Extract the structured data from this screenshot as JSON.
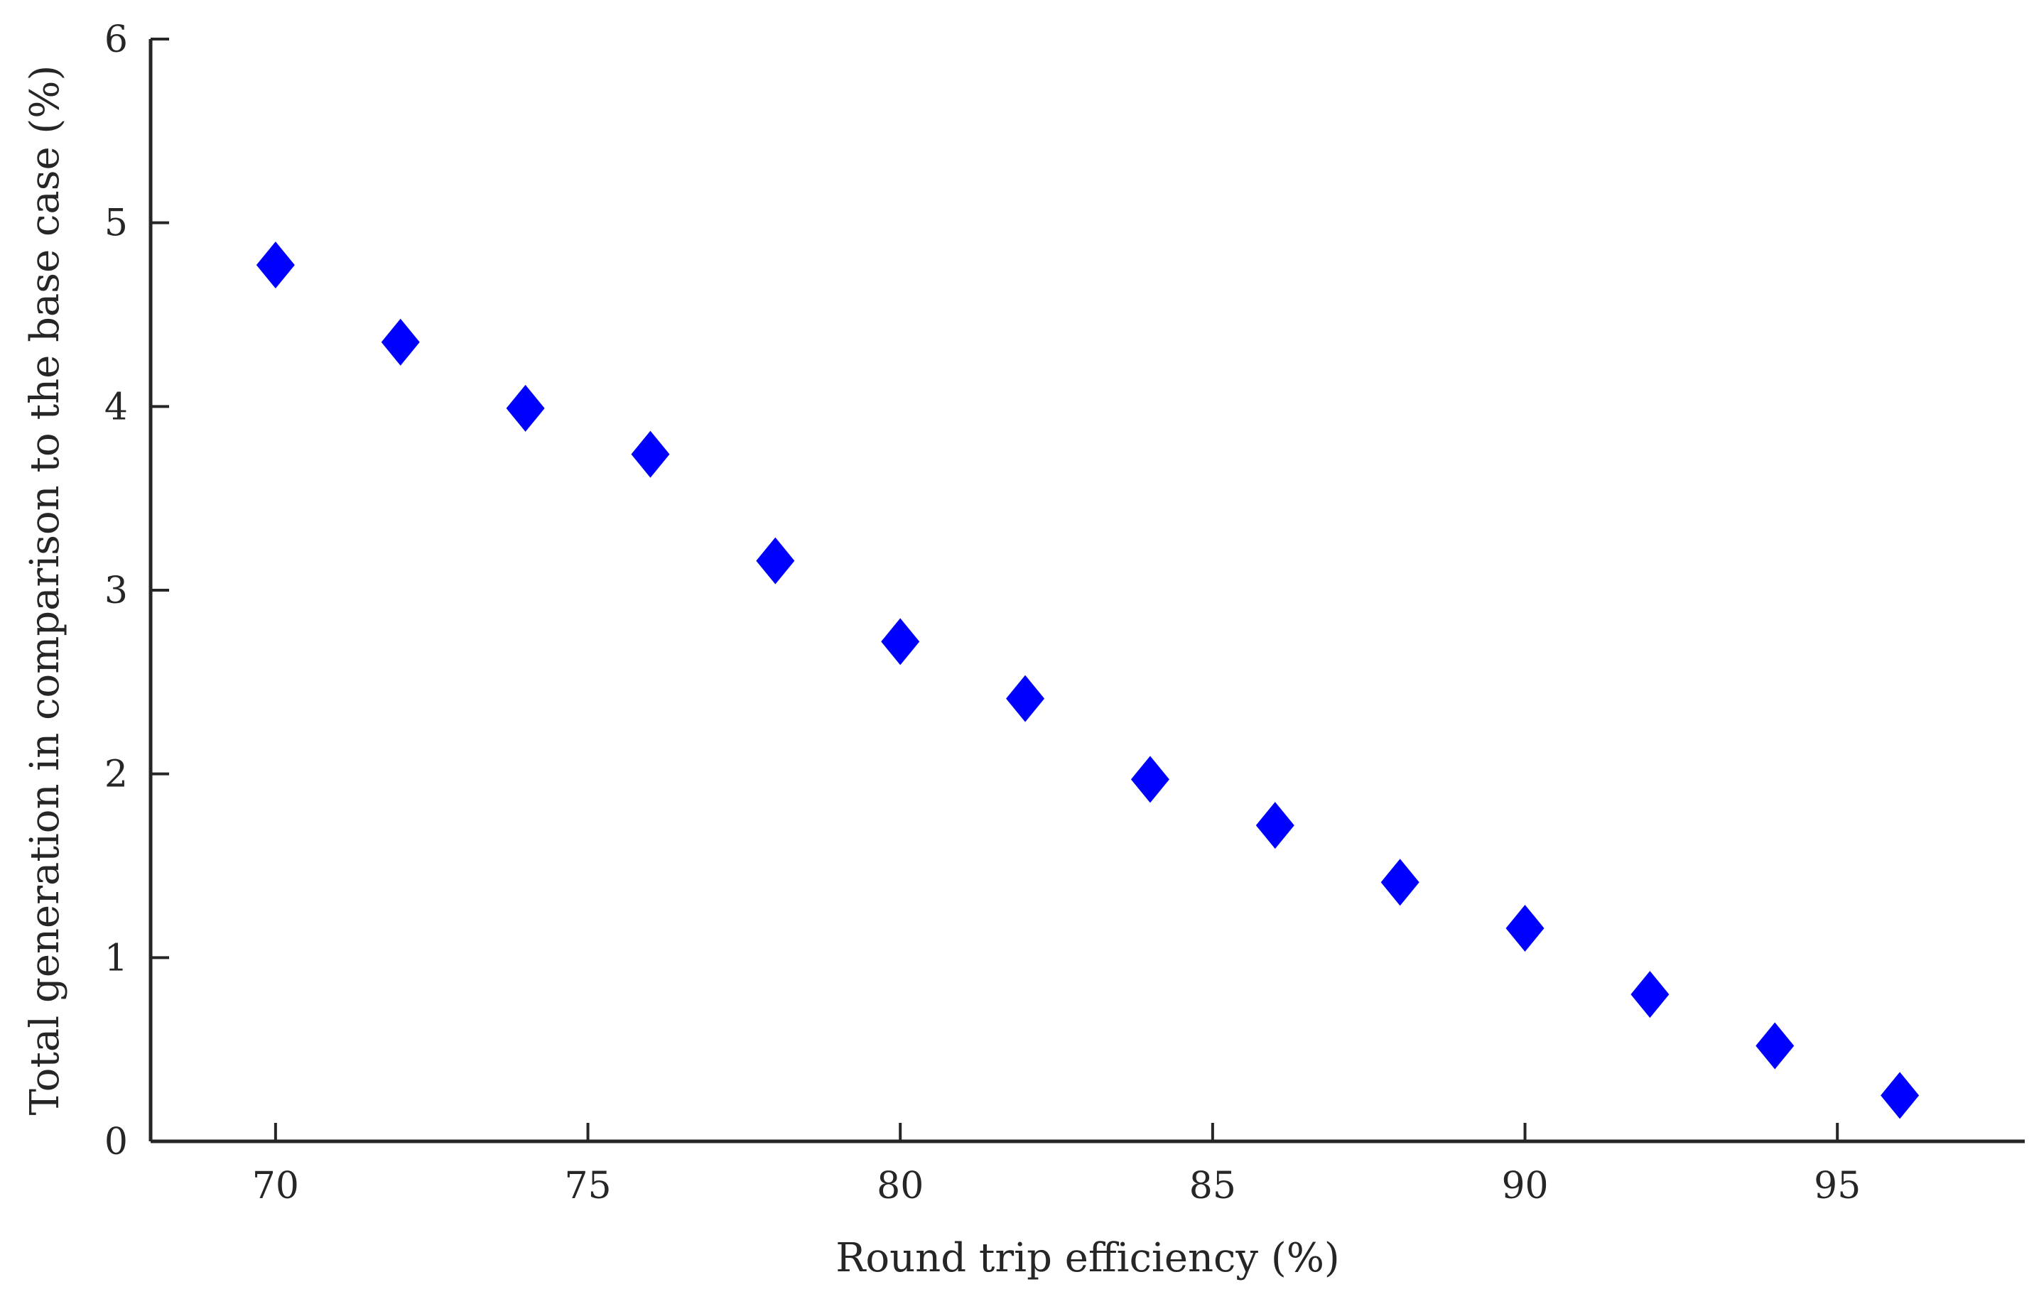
{
  "chart_data": {
    "type": "scatter",
    "title": "",
    "xlabel": "Round trip efficiency (%)",
    "ylabel": "Total generation in comparison to the base case (%)",
    "xlim": [
      68,
      98
    ],
    "ylim": [
      0,
      6
    ],
    "xticks": [
      70,
      75,
      80,
      85,
      90,
      95
    ],
    "yticks": [
      0,
      1,
      2,
      3,
      4,
      5,
      6
    ],
    "grid": false,
    "marker": "diamond",
    "marker_color": "#0000ff",
    "axis_color": "#262626",
    "series": [
      {
        "x": [
          70,
          72,
          74,
          76,
          78,
          80,
          82,
          84,
          86,
          88,
          90,
          92,
          94,
          96
        ],
        "y": [
          4.77,
          4.35,
          3.99,
          3.74,
          3.16,
          2.72,
          2.41,
          1.97,
          1.72,
          1.41,
          1.16,
          0.8,
          0.52,
          0.25
        ]
      }
    ]
  }
}
